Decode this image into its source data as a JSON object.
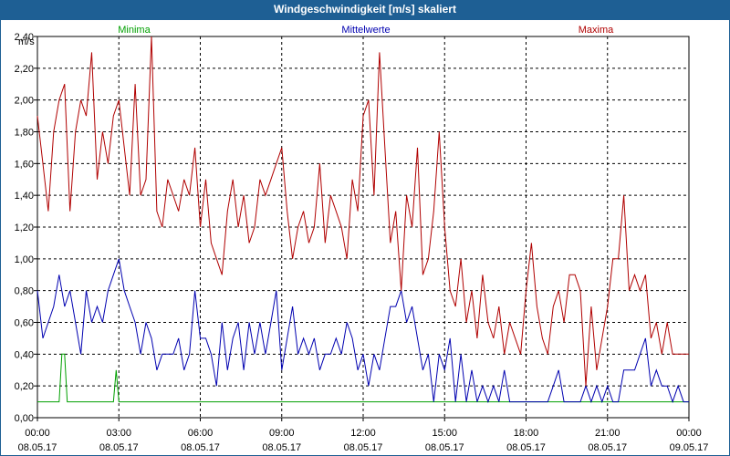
{
  "window": {
    "title": "Windgeschwindigkeit [m/s] skaliert"
  },
  "chart_data": {
    "type": "line",
    "ylabel": "m/s",
    "ylim": [
      0,
      2.4
    ],
    "yticks": [
      "0,00",
      "0,20",
      "0,40",
      "0,60",
      "0,80",
      "1,00",
      "1,20",
      "1,40",
      "1,60",
      "1,80",
      "2,00",
      "2,20",
      "2,40"
    ],
    "xlim_hours": [
      0,
      24
    ],
    "xticks": [
      {
        "time": "00:00",
        "date": "08.05.17"
      },
      {
        "time": "03:00",
        "date": "08.05.17"
      },
      {
        "time": "06:00",
        "date": "08.05.17"
      },
      {
        "time": "09:00",
        "date": "08.05.17"
      },
      {
        "time": "12:00",
        "date": "08.05.17"
      },
      {
        "time": "15:00",
        "date": "08.05.17"
      },
      {
        "time": "18:00",
        "date": "08.05.17"
      },
      {
        "time": "21:00",
        "date": "08.05.17"
      },
      {
        "time": "00:00",
        "date": "09.05.17"
      }
    ],
    "grid": true,
    "legend_position": "top",
    "series": [
      {
        "name": "Minima",
        "color": "#00a000",
        "x": [
          0,
          0.8,
          0.9,
          1.0,
          1.1,
          2.8,
          2.9,
          3.0,
          24
        ],
        "y": [
          0.1,
          0.1,
          0.4,
          0.4,
          0.1,
          0.1,
          0.3,
          0.1,
          0.1
        ]
      },
      {
        "name": "Mittelwerte",
        "color": "#0000b0",
        "x": [
          0.0,
          0.2,
          0.4,
          0.6,
          0.8,
          1.0,
          1.2,
          1.4,
          1.6,
          1.8,
          2.0,
          2.2,
          2.4,
          2.6,
          2.8,
          3.0,
          3.2,
          3.4,
          3.6,
          3.8,
          4.0,
          4.2,
          4.4,
          4.6,
          4.8,
          5.0,
          5.2,
          5.4,
          5.6,
          5.8,
          6.0,
          6.2,
          6.4,
          6.6,
          6.8,
          7.0,
          7.2,
          7.4,
          7.6,
          7.8,
          8.0,
          8.2,
          8.4,
          8.6,
          8.8,
          9.0,
          9.2,
          9.4,
          9.6,
          9.8,
          10.0,
          10.2,
          10.4,
          10.6,
          10.8,
          11.0,
          11.2,
          11.4,
          11.6,
          11.8,
          12.0,
          12.2,
          12.4,
          12.6,
          12.8,
          13.0,
          13.2,
          13.4,
          13.6,
          13.8,
          14.0,
          14.2,
          14.4,
          14.6,
          14.8,
          15.0,
          15.2,
          15.4,
          15.6,
          15.8,
          16.0,
          16.2,
          16.4,
          16.6,
          16.8,
          17.0,
          17.2,
          17.4,
          17.6,
          17.8,
          18.0,
          18.2,
          18.4,
          18.6,
          18.8,
          19.0,
          19.2,
          19.4,
          19.6,
          19.8,
          20.0,
          20.2,
          20.4,
          20.6,
          20.8,
          21.0,
          21.2,
          21.4,
          21.6,
          21.8,
          22.0,
          22.2,
          22.4,
          22.6,
          22.8,
          23.0,
          23.2,
          23.4,
          23.6,
          23.8,
          24.0
        ],
        "y": [
          0.8,
          0.5,
          0.6,
          0.7,
          0.9,
          0.7,
          0.8,
          0.6,
          0.4,
          0.8,
          0.6,
          0.7,
          0.6,
          0.8,
          0.9,
          1.0,
          0.8,
          0.7,
          0.6,
          0.4,
          0.6,
          0.5,
          0.3,
          0.4,
          0.4,
          0.4,
          0.5,
          0.3,
          0.4,
          0.8,
          0.5,
          0.5,
          0.4,
          0.2,
          0.6,
          0.3,
          0.5,
          0.6,
          0.3,
          0.6,
          0.4,
          0.6,
          0.4,
          0.6,
          0.8,
          0.3,
          0.5,
          0.7,
          0.4,
          0.5,
          0.4,
          0.5,
          0.3,
          0.4,
          0.4,
          0.5,
          0.4,
          0.6,
          0.5,
          0.3,
          0.4,
          0.2,
          0.4,
          0.3,
          0.5,
          0.7,
          0.7,
          0.8,
          0.6,
          0.7,
          0.5,
          0.3,
          0.4,
          0.1,
          0.4,
          0.3,
          0.5,
          0.1,
          0.4,
          0.1,
          0.3,
          0.1,
          0.2,
          0.1,
          0.2,
          0.1,
          0.3,
          0.1,
          0.1,
          0.1,
          0.1,
          0.1,
          0.1,
          0.1,
          0.1,
          0.2,
          0.3,
          0.1,
          0.1,
          0.1,
          0.1,
          0.2,
          0.1,
          0.2,
          0.1,
          0.2,
          0.1,
          0.1,
          0.3,
          0.3,
          0.3,
          0.4,
          0.5,
          0.2,
          0.3,
          0.2,
          0.2,
          0.1,
          0.2,
          0.1,
          0.1
        ]
      },
      {
        "name": "Maxima",
        "color": "#b00000",
        "x": [
          0.0,
          0.2,
          0.4,
          0.6,
          0.8,
          1.0,
          1.2,
          1.4,
          1.6,
          1.8,
          2.0,
          2.2,
          2.4,
          2.6,
          2.8,
          3.0,
          3.2,
          3.4,
          3.6,
          3.8,
          4.0,
          4.2,
          4.4,
          4.6,
          4.8,
          5.0,
          5.2,
          5.4,
          5.6,
          5.8,
          6.0,
          6.2,
          6.4,
          6.6,
          6.8,
          7.0,
          7.2,
          7.4,
          7.6,
          7.8,
          8.0,
          8.2,
          8.4,
          8.6,
          8.8,
          9.0,
          9.2,
          9.4,
          9.6,
          9.8,
          10.0,
          10.2,
          10.4,
          10.6,
          10.8,
          11.0,
          11.2,
          11.4,
          11.6,
          11.8,
          12.0,
          12.2,
          12.4,
          12.6,
          12.8,
          13.0,
          13.2,
          13.4,
          13.6,
          13.8,
          14.0,
          14.2,
          14.4,
          14.6,
          14.8,
          15.0,
          15.2,
          15.4,
          15.6,
          15.8,
          16.0,
          16.2,
          16.4,
          16.6,
          16.8,
          17.0,
          17.2,
          17.4,
          17.6,
          17.8,
          18.0,
          18.2,
          18.4,
          18.6,
          18.8,
          19.0,
          19.2,
          19.4,
          19.6,
          19.8,
          20.0,
          20.2,
          20.4,
          20.6,
          20.8,
          21.0,
          21.2,
          21.4,
          21.6,
          21.8,
          22.0,
          22.2,
          22.4,
          22.6,
          22.8,
          23.0,
          23.2,
          23.4,
          23.6,
          23.8,
          24.0
        ],
        "y": [
          1.9,
          1.6,
          1.3,
          1.8,
          2.0,
          2.1,
          1.3,
          1.8,
          2.0,
          1.9,
          2.3,
          1.5,
          1.8,
          1.6,
          1.9,
          2.0,
          1.7,
          1.4,
          2.1,
          1.4,
          1.5,
          2.4,
          1.3,
          1.2,
          1.5,
          1.4,
          1.3,
          1.5,
          1.4,
          1.7,
          1.2,
          1.5,
          1.1,
          1.0,
          0.9,
          1.3,
          1.5,
          1.2,
          1.4,
          1.1,
          1.2,
          1.5,
          1.4,
          1.5,
          1.6,
          1.7,
          1.3,
          1.0,
          1.2,
          1.3,
          1.1,
          1.2,
          1.6,
          1.1,
          1.4,
          1.3,
          1.2,
          1.0,
          1.5,
          1.3,
          1.9,
          2.0,
          1.4,
          2.3,
          1.7,
          1.1,
          1.3,
          0.8,
          1.4,
          1.2,
          1.7,
          0.9,
          1.0,
          1.3,
          1.8,
          1.2,
          0.8,
          0.7,
          1.0,
          0.6,
          0.8,
          0.5,
          0.9,
          0.6,
          0.5,
          0.7,
          0.4,
          0.6,
          0.5,
          0.4,
          0.8,
          1.1,
          0.7,
          0.5,
          0.4,
          0.7,
          0.8,
          0.6,
          0.9,
          0.9,
          0.8,
          0.2,
          0.7,
          0.3,
          0.5,
          0.7,
          1.0,
          1.0,
          1.4,
          0.8,
          0.9,
          0.8,
          0.9,
          0.5,
          0.6,
          0.4,
          0.6,
          0.4,
          0.4,
          0.4,
          0.4
        ]
      }
    ]
  }
}
